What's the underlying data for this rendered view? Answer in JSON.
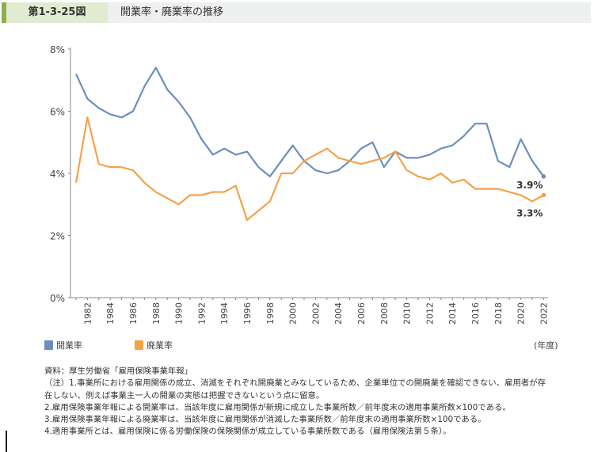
{
  "header": {
    "figure_number": "第1-3-25図",
    "title": "開業率・廃業率の推移"
  },
  "chart_data": {
    "type": "line",
    "title": "開業率・廃業率の推移",
    "xlabel": "(年度)",
    "ylabel": "",
    "ylim": [
      0,
      8
    ],
    "yticks": [
      "0%",
      "2%",
      "4%",
      "6%",
      "8%"
    ],
    "x": [
      1981,
      1982,
      1983,
      1984,
      1985,
      1986,
      1987,
      1988,
      1989,
      1990,
      1991,
      1992,
      1993,
      1994,
      1995,
      1996,
      1997,
      1998,
      1999,
      2000,
      2001,
      2002,
      2003,
      2004,
      2005,
      2006,
      2007,
      2008,
      2009,
      2010,
      2011,
      2012,
      2013,
      2014,
      2015,
      2016,
      2017,
      2018,
      2019,
      2020,
      2021,
      2022
    ],
    "xticks": [
      "1982",
      "1984",
      "1986",
      "1988",
      "1990",
      "1992",
      "1994",
      "1996",
      "1998",
      "2000",
      "2002",
      "2004",
      "2006",
      "2008",
      "2010",
      "2012",
      "2014",
      "2016",
      "2018",
      "2020",
      "2022"
    ],
    "grid": false,
    "legend_position": "bottom-left",
    "series": [
      {
        "name": "開業率",
        "color": "#6c8ebf",
        "values": [
          7.2,
          6.4,
          6.1,
          5.9,
          5.8,
          6.0,
          6.8,
          7.4,
          6.7,
          6.3,
          5.8,
          5.1,
          4.6,
          4.8,
          4.6,
          4.7,
          4.2,
          3.9,
          4.4,
          4.9,
          4.4,
          4.1,
          4.0,
          4.1,
          4.4,
          4.8,
          5.0,
          4.2,
          4.7,
          4.5,
          4.5,
          4.6,
          4.8,
          4.9,
          5.2,
          5.6,
          5.6,
          4.4,
          4.2,
          5.1,
          4.4,
          3.9
        ],
        "end_label": "3.9%"
      },
      {
        "name": "廃業率",
        "color": "#f4a24a",
        "values": [
          3.7,
          5.8,
          4.3,
          4.2,
          4.2,
          4.1,
          3.7,
          3.4,
          3.2,
          3.0,
          3.3,
          3.3,
          3.4,
          3.4,
          3.6,
          2.5,
          2.8,
          3.1,
          4.0,
          4.0,
          4.4,
          4.6,
          4.8,
          4.5,
          4.4,
          4.3,
          4.4,
          4.5,
          4.7,
          4.1,
          3.9,
          3.8,
          4.0,
          3.7,
          3.8,
          3.5,
          3.5,
          3.5,
          3.4,
          3.3,
          3.1,
          3.3
        ],
        "end_label": "3.3%"
      }
    ]
  },
  "notes": [
    "資料：厚生労働省「雇用保険事業年報」",
    "（注）1.事業所における雇用関係の成立、消滅をそれぞれ開廃業とみなしているため、企業単位での開廃業を確認できない、雇用者が存在しない、例えば事業主一人の開業の実態は把握できないという点に留意。",
    "2.雇用保険事業年報による開業率は、当該年度に雇用関係が新規に成立した事業所数／前年度末の適用事業所数×100である。",
    "3.雇用保険事業年報による廃業率は、当該年度に雇用関係が消滅した事業所数／前年度末の適用事業所数×100である。",
    "4.適用事業所とは、雇用保険に係る労働保険の保険関係が成立している事業所数である（雇用保険法第５条）。"
  ]
}
